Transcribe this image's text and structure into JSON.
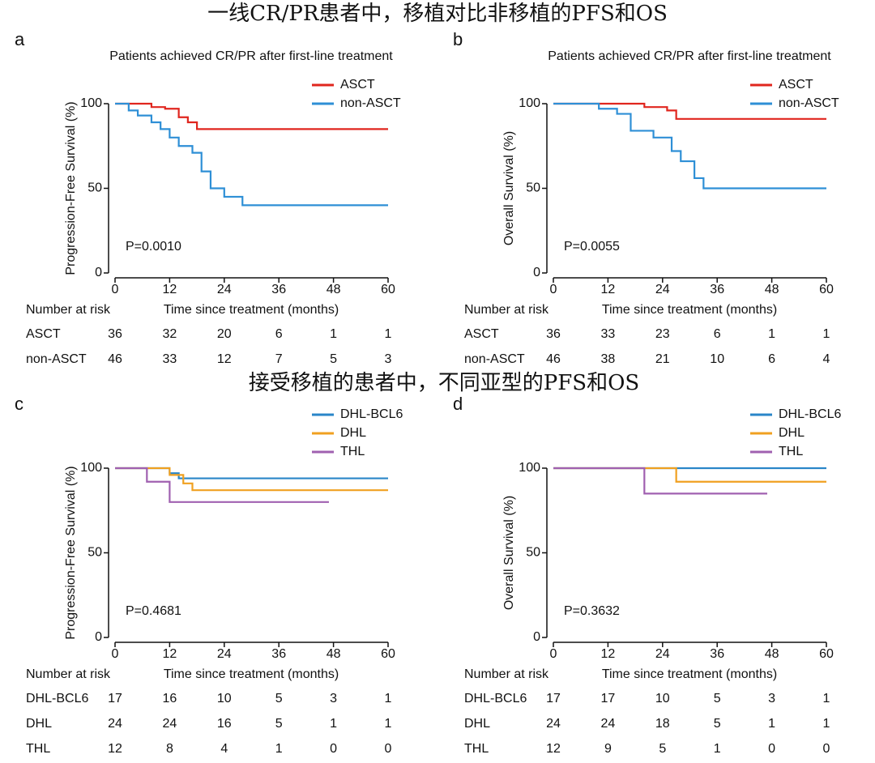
{
  "headings": [
    "一线CR/PR患者中，移植对比非移植的PFS和OS",
    "接受移植的患者中，不同亚型的PFS和OS"
  ],
  "chart_data": [
    {
      "type": "step",
      "panel": "a",
      "title": "Patients achieved CR/PR after first-line treatment",
      "xlabel": "Time since treatment (months)",
      "ylabel": "Progression-Free Survival (%)",
      "annotation": "P=0.0010",
      "xlim": [
        0,
        60
      ],
      "xticks": [
        0,
        12,
        24,
        36,
        48,
        60
      ],
      "ylim": [
        0,
        100
      ],
      "yticks": [
        0,
        50,
        100
      ],
      "series": [
        {
          "name": "ASCT",
          "color": "#e0261e",
          "x": [
            0,
            8,
            11,
            14,
            16,
            18,
            60
          ],
          "values": [
            100,
            98,
            97,
            92,
            89,
            85,
            85
          ]
        },
        {
          "name": "non-ASCT",
          "color": "#2e8fd6",
          "x": [
            0,
            3,
            5,
            8,
            10,
            12,
            14,
            17,
            19,
            21,
            24,
            28,
            60
          ],
          "values": [
            100,
            96,
            93,
            89,
            85,
            80,
            75,
            71,
            60,
            50,
            45,
            40,
            40
          ]
        }
      ],
      "risk_table": {
        "title": "Number at risk",
        "rows": [
          {
            "name": "ASCT",
            "values": [
              36,
              32,
              20,
              6,
              1,
              1
            ]
          },
          {
            "name": "non-ASCT",
            "values": [
              46,
              33,
              12,
              7,
              5,
              3
            ]
          }
        ]
      }
    },
    {
      "type": "step",
      "panel": "b",
      "title": "Patients achieved CR/PR after first-line treatment",
      "xlabel": "Time since treatment (months)",
      "ylabel": "Overall Survival (%)",
      "annotation": "P=0.0055",
      "xlim": [
        0,
        60
      ],
      "xticks": [
        0,
        12,
        24,
        36,
        48,
        60
      ],
      "ylim": [
        0,
        100
      ],
      "yticks": [
        0,
        50,
        100
      ],
      "series": [
        {
          "name": "ASCT",
          "color": "#e0261e",
          "x": [
            0,
            20,
            25,
            27,
            60
          ],
          "values": [
            100,
            98,
            96,
            91,
            91
          ]
        },
        {
          "name": "non-ASCT",
          "color": "#2e8fd6",
          "x": [
            0,
            10,
            14,
            17,
            22,
            26,
            28,
            31,
            33,
            60
          ],
          "values": [
            100,
            97,
            94,
            84,
            80,
            72,
            66,
            56,
            50,
            50
          ]
        }
      ],
      "risk_table": {
        "title": "Number at risk",
        "rows": [
          {
            "name": "ASCT",
            "values": [
              36,
              33,
              23,
              6,
              1,
              1
            ]
          },
          {
            "name": "non-ASCT",
            "values": [
              46,
              38,
              21,
              10,
              6,
              4
            ]
          }
        ]
      }
    },
    {
      "type": "step",
      "panel": "c",
      "xlabel": "Time since treatment (months)",
      "ylabel": "Progression-Free Survival (%)",
      "annotation": "P=0.4681",
      "xlim": [
        0,
        60
      ],
      "xticks": [
        0,
        12,
        24,
        36,
        48,
        60
      ],
      "ylim": [
        0,
        100
      ],
      "yticks": [
        0,
        50,
        100
      ],
      "series": [
        {
          "name": "DHL-BCL6",
          "color": "#2a86c8",
          "x": [
            0,
            12,
            14,
            60
          ],
          "values": [
            100,
            97,
            94,
            94
          ]
        },
        {
          "name": "DHL",
          "color": "#f0a020",
          "x": [
            0,
            12,
            15,
            17,
            60
          ],
          "values": [
            100,
            96,
            91,
            87,
            87
          ]
        },
        {
          "name": "THL",
          "color": "#a060b0",
          "x": [
            0,
            7,
            12,
            47
          ],
          "values": [
            100,
            92,
            80,
            80
          ]
        }
      ],
      "risk_table": {
        "title": "Number at risk",
        "rows": [
          {
            "name": "DHL-BCL6",
            "values": [
              17,
              16,
              10,
              5,
              3,
              1
            ]
          },
          {
            "name": "DHL",
            "values": [
              24,
              24,
              16,
              5,
              1,
              1
            ]
          },
          {
            "name": "THL",
            "values": [
              12,
              8,
              4,
              1,
              0,
              0
            ]
          }
        ]
      }
    },
    {
      "type": "step",
      "panel": "d",
      "xlabel": "Time since treatment (months)",
      "ylabel": "Overall Survival (%)",
      "annotation": "P=0.3632",
      "xlim": [
        0,
        60
      ],
      "xticks": [
        0,
        12,
        24,
        36,
        48,
        60
      ],
      "ylim": [
        0,
        100
      ],
      "yticks": [
        0,
        50,
        100
      ],
      "series": [
        {
          "name": "DHL-BCL6",
          "color": "#2a86c8",
          "x": [
            0,
            60
          ],
          "values": [
            100,
            100
          ]
        },
        {
          "name": "DHL",
          "color": "#f0a020",
          "x": [
            0,
            27,
            60
          ],
          "values": [
            100,
            92,
            92
          ]
        },
        {
          "name": "THL",
          "color": "#a060b0",
          "x": [
            0,
            20,
            47
          ],
          "values": [
            100,
            85,
            85
          ]
        }
      ],
      "risk_table": {
        "title": "Number at risk",
        "rows": [
          {
            "name": "DHL-BCL6",
            "values": [
              17,
              17,
              10,
              5,
              3,
              1
            ]
          },
          {
            "name": "DHL",
            "values": [
              24,
              24,
              18,
              5,
              1,
              1
            ]
          },
          {
            "name": "THL",
            "values": [
              12,
              9,
              5,
              1,
              0,
              0
            ]
          }
        ]
      }
    }
  ]
}
